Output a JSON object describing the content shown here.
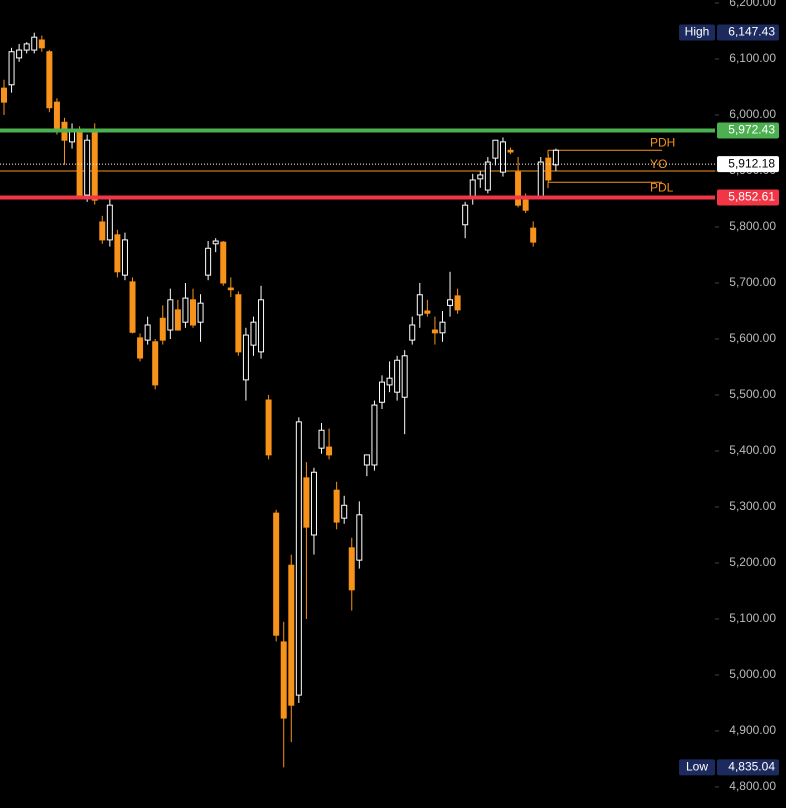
{
  "chart_data": {
    "type": "candlestick",
    "up_color": "#ffffff",
    "down_color": "#f7931a",
    "ylim": [
      4762.4,
      6205.4
    ],
    "yticks": [
      {
        "value": 4800,
        "label": "4,800.00"
      },
      {
        "value": 4900,
        "label": "4,900.00"
      },
      {
        "value": 5000,
        "label": "5,000.00"
      },
      {
        "value": 5100,
        "label": "5,100.00"
      },
      {
        "value": 5200,
        "label": "5,200.00"
      },
      {
        "value": 5300,
        "label": "5,300.00"
      },
      {
        "value": 5400,
        "label": "5,400.00"
      },
      {
        "value": 5500,
        "label": "5,500.00"
      },
      {
        "value": 5600,
        "label": "5,600.00"
      },
      {
        "value": 5700,
        "label": "5,700.00"
      },
      {
        "value": 5800,
        "label": "5,800.00"
      },
      {
        "value": 5900,
        "label": "5,900.00"
      },
      {
        "value": 6000,
        "label": "6,000.00"
      },
      {
        "value": 6100,
        "label": "6,100.00"
      },
      {
        "value": 6200,
        "label": "6,200.00"
      }
    ],
    "open": [
      6048,
      6054,
      6102,
      6116,
      6116,
      6134,
      6113,
      6023,
      5987,
      5952,
      5973,
      5857,
      5973,
      5809,
      5777,
      5786,
      5714,
      5702,
      5602,
      5598,
      5595,
      5637,
      5616,
      5652,
      5630,
      5670,
      5630,
      5714,
      5770,
      5773,
      5691,
      5679,
      5527,
      5589,
      5577,
      5491,
      5289,
      5059,
      5196,
      4964,
      5352,
      5250,
      5405,
      5407,
      5330,
      5280,
      5227,
      5205,
      5375,
      5375,
      5487,
      5518,
      5505,
      5496,
      5598,
      5643,
      5650,
      5616,
      5611,
      5660,
      5677,
      5804,
      5855,
      5886,
      5866,
      5923,
      5898,
      5937,
      5898,
      5848,
      5798,
      5854,
      5923,
      5911
    ],
    "high": [
      6063,
      6120,
      6127,
      6130,
      6147,
      6142,
      6116,
      6030,
      5995,
      5985,
      5980,
      5965,
      5985,
      5820,
      5850,
      5795,
      5790,
      5710,
      5610,
      5640,
      5600,
      5660,
      5690,
      5670,
      5700,
      5690,
      5680,
      5775,
      5780,
      5775,
      5710,
      5685,
      5620,
      5640,
      5695,
      5500,
      5295,
      5095,
      5215,
      5460,
      5380,
      5370,
      5450,
      5440,
      5345,
      5320,
      5245,
      5310,
      5390,
      5490,
      5535,
      5560,
      5570,
      5580,
      5640,
      5700,
      5670,
      5640,
      5650,
      5720,
      5690,
      5845,
      5895,
      5900,
      5925,
      5955,
      5960,
      5942,
      5925,
      5860,
      5810,
      5925,
      5930,
      5940
    ],
    "low": [
      6000,
      6040,
      6095,
      6110,
      6110,
      6113,
      6005,
      5965,
      5911,
      5940,
      5850,
      5845,
      5840,
      5770,
      5765,
      5710,
      5705,
      5610,
      5560,
      5590,
      5510,
      5590,
      5600,
      5615,
      5620,
      5620,
      5595,
      5705,
      5755,
      5695,
      5675,
      5570,
      5490,
      5570,
      5565,
      5385,
      5060,
      4835,
      4880,
      4950,
      5100,
      5215,
      5395,
      5385,
      5260,
      5270,
      5115,
      5190,
      5355,
      5365,
      5475,
      5505,
      5490,
      5430,
      5590,
      5620,
      5640,
      5590,
      5595,
      5640,
      5645,
      5780,
      5840,
      5870,
      5860,
      5910,
      5890,
      5930,
      5835,
      5825,
      5765,
      5850,
      5880,
      5900
    ],
    "close": [
      6023,
      6113,
      6116,
      6127,
      6139,
      6120,
      6013,
      5973,
      5955,
      5973,
      5857,
      5955,
      5848,
      5777,
      5839,
      5720,
      5777,
      5612,
      5566,
      5625,
      5518,
      5598,
      5670,
      5616,
      5673,
      5625,
      5664,
      5762,
      5775,
      5700,
      5688,
      5577,
      5607,
      5630,
      5670,
      5393,
      5071,
      4923,
      4946,
      5452,
      5264,
      5362,
      5437,
      5393,
      5273,
      5303,
      5152,
      5286,
      5393,
      5482,
      5523,
      5530,
      5562,
      5570,
      5625,
      5679,
      5646,
      5611,
      5630,
      5670,
      5652,
      5839,
      5884,
      5893,
      5916,
      5955,
      5952,
      5934,
      5839,
      5830,
      5773,
      5916,
      5884,
      5937
    ],
    "levels": [
      {
        "name": "High",
        "value": 6147.43,
        "value_label": "6,147.43",
        "badge": "#1c2a5e",
        "text_color": "#ffffff"
      },
      {
        "value": 5972.43,
        "value_label": "5,972.43",
        "color": "#4caf50",
        "badge": "#4caf50",
        "text_color": "#ffffff"
      },
      {
        "value": 5912.18,
        "value_label": "5,912.18",
        "color": "#ffffff",
        "badge": "#ffffff",
        "text_color": "#000000",
        "dotted": true
      },
      {
        "value": 5852.61,
        "value_label": "5,852.61",
        "color": "#f23645",
        "badge": "#f23645",
        "text_color": "#ffffff"
      },
      {
        "name": "Low",
        "value": 4835.04,
        "value_label": "4,835.04",
        "badge": "#1c2a5e",
        "text_color": "#ffffff"
      }
    ],
    "markers": [
      {
        "name": "PDH",
        "value": 5937,
        "color": "#f7931a"
      },
      {
        "name": "YO",
        "value": 5900,
        "color": "#f7931a",
        "full": true
      },
      {
        "name": "PDL",
        "value": 5880,
        "color": "#f7931a"
      }
    ]
  }
}
